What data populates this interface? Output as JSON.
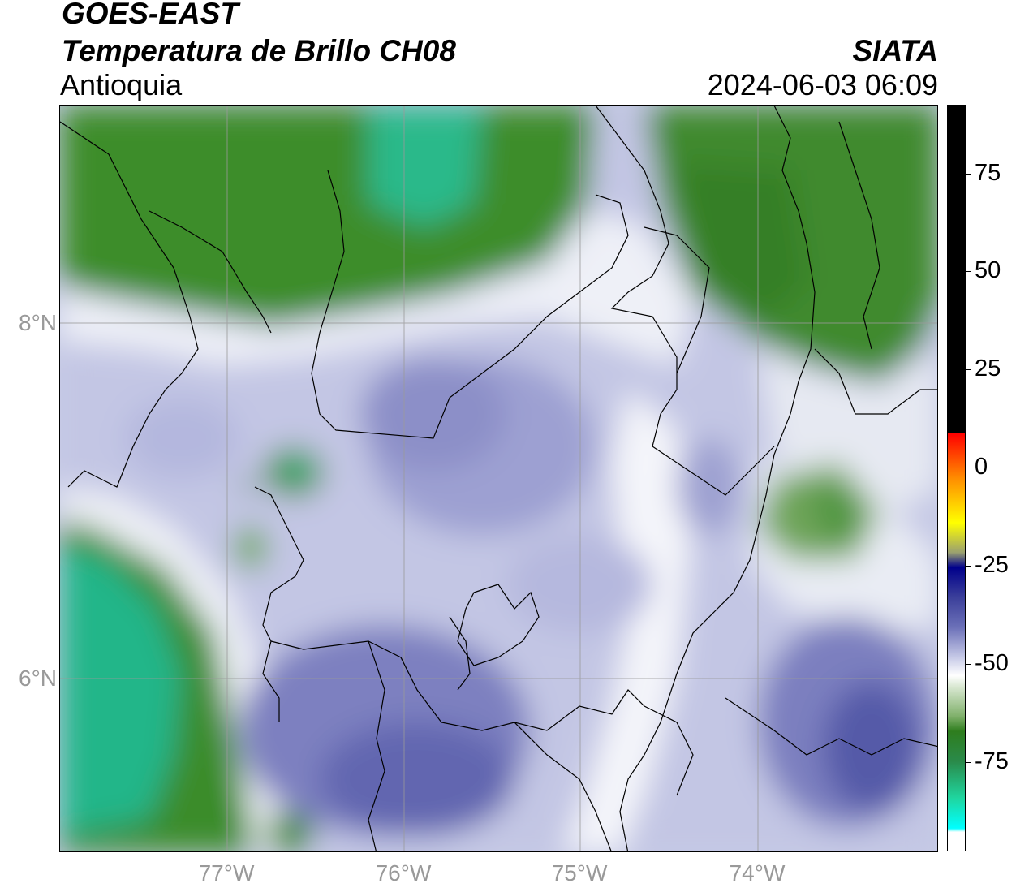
{
  "header": {
    "satellite": "GOES-EAST",
    "product": "Temperatura de Brillo CH08",
    "region": "Antioquia",
    "agency": "SIATA",
    "timestamp": "2024-06-03 06:09"
  },
  "map": {
    "lat_labels": [
      "8°N",
      "6°N"
    ],
    "lon_labels": [
      "77°W",
      "76°W",
      "75°W",
      "74°W"
    ],
    "colors": {
      "warm_green": "#3b8c2a",
      "cold_teal": "#1fbf8f",
      "cloud_white": "#f2f3f8",
      "lavender": "#b8bce0",
      "indigo": "#4a4f9e",
      "border": "#000000",
      "grid": "#9a9a9a"
    }
  },
  "colorbar": {
    "labels": [
      "75",
      "50",
      "25",
      "0",
      "-25",
      "-50",
      "-75"
    ],
    "range": [
      -93,
      92
    ],
    "colors": {
      "black": "#000000",
      "red": "#ff0000",
      "orange": "#ff8c00",
      "yellow": "#ffff00",
      "navy": "#00008b",
      "blue_gray": "#6b70b8",
      "white": "#ffffff",
      "green": "#2e7d1e",
      "teal": "#1fd6a0",
      "cyan": "#00ffff"
    }
  }
}
